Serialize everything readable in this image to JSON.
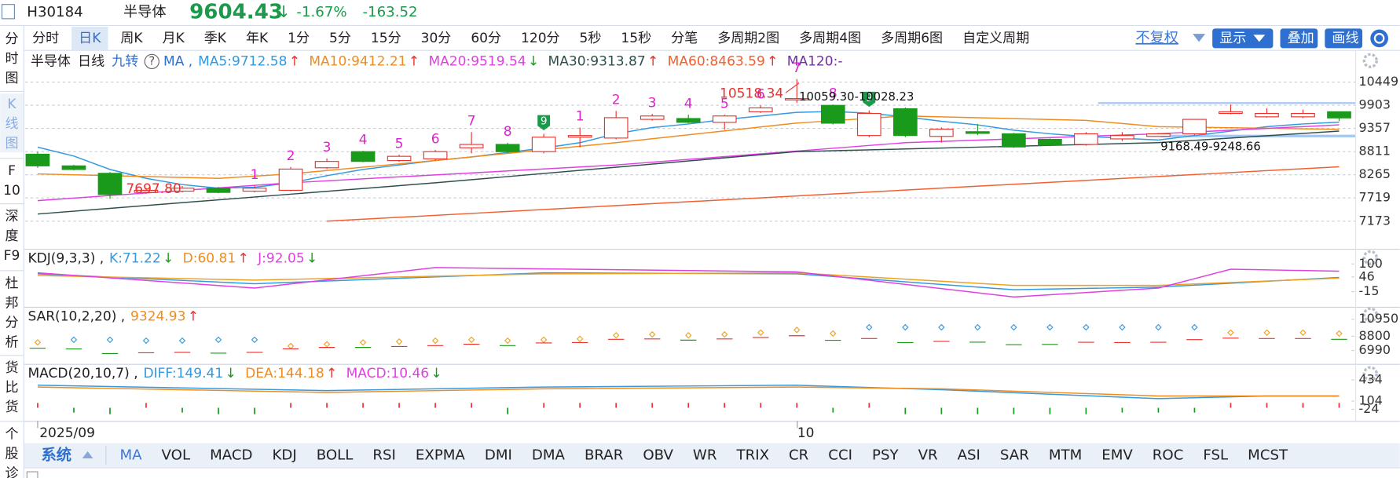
{
  "header": {
    "code": "H30184",
    "name": "半导体",
    "price": "9604.43",
    "arrow": "↓",
    "change_pct": "-1.67%",
    "change": "-163.52"
  },
  "sidebar": [
    "分时图",
    "K线图",
    "F10",
    "深度F9",
    "杜邦分析",
    "货比货",
    "个股诊"
  ],
  "periods": [
    "分时",
    "日K",
    "周K",
    "月K",
    "季K",
    "年K",
    "1分",
    "5分",
    "15分",
    "30分",
    "60分",
    "120分",
    "5秒",
    "15秒",
    "分笔",
    "多周期2图",
    "多周期4图",
    "多周期6图",
    "自定义周期"
  ],
  "period_selected": 1,
  "controls": [
    "不复权",
    "显示",
    "叠加",
    "画线"
  ],
  "main_legend": {
    "lead": [
      "半导体",
      "日线",
      "九转"
    ],
    "help": "?",
    "indicator": "MA ,",
    "items": [
      {
        "text": "MA5:9712.58",
        "color": "#3399e0",
        "arrow": "↑",
        "arrow_color": "#e8322e"
      },
      {
        "text": "MA10:9412.21",
        "color": "#f08c1e",
        "arrow": "↑",
        "arrow_color": "#e8322e"
      },
      {
        "text": "MA20:9519.54",
        "color": "#e040e0",
        "arrow": "↓",
        "arrow_color": "#1a9a1a"
      },
      {
        "text": "MA30:9313.87",
        "color": "#2f4f4f",
        "arrow": "↑",
        "arrow_color": "#e8322e"
      },
      {
        "text": "MA60:8463.59",
        "color": "#f06030",
        "arrow": "↑",
        "arrow_color": "#e8322e"
      },
      {
        "text": "MA120:-",
        "color": "#7030a0"
      }
    ]
  },
  "kline": {
    "ylim": [
      6606,
      10701
    ],
    "yticks": [
      10449,
      9903,
      9357,
      8811,
      8265,
      7719,
      7173
    ],
    "up_color": "#e8322e",
    "down_color": "#1a9a1a",
    "candles": [
      [
        8750,
        8810,
        8430,
        8475
      ],
      [
        8475,
        8500,
        8370,
        8390
      ],
      [
        8300,
        8330,
        7698,
        7800
      ],
      [
        7850,
        7950,
        7820,
        7900
      ],
      [
        7880,
        8000,
        7850,
        7950
      ],
      [
        7950,
        7980,
        7830,
        7850
      ],
      [
        7880,
        8010,
        7850,
        7950
      ],
      [
        7900,
        8450,
        7880,
        8400
      ],
      [
        8430,
        8650,
        8400,
        8580
      ],
      [
        8810,
        8830,
        8560,
        8580
      ],
      [
        8600,
        8740,
        8570,
        8700
      ],
      [
        8640,
        8850,
        8600,
        8810
      ],
      [
        8900,
        9270,
        8770,
        8980
      ],
      [
        8980,
        9020,
        8780,
        8810
      ],
      [
        8810,
        9230,
        8770,
        9150
      ],
      [
        9150,
        9380,
        8910,
        9190
      ],
      [
        9130,
        9770,
        9100,
        9610
      ],
      [
        9570,
        9700,
        9540,
        9650
      ],
      [
        9590,
        9680,
        9480,
        9500
      ],
      [
        9500,
        9680,
        9330,
        9650
      ],
      [
        9750,
        9900,
        9720,
        9840
      ],
      [
        10028,
        10518,
        9960,
        10059
      ],
      [
        9900,
        9920,
        9450,
        9480
      ],
      [
        9190,
        9780,
        9150,
        9710
      ],
      [
        9820,
        9850,
        9150,
        9190
      ],
      [
        9170,
        9380,
        9020,
        9340
      ],
      [
        9280,
        9460,
        9200,
        9240
      ],
      [
        9230,
        9250,
        8900,
        8920
      ],
      [
        9100,
        9120,
        8940,
        8960
      ],
      [
        8980,
        9270,
        8950,
        9230
      ],
      [
        9110,
        9270,
        9060,
        9190
      ],
      [
        9170,
        9250,
        9168,
        9230
      ],
      [
        9230,
        9580,
        9200,
        9570
      ],
      [
        9710,
        9920,
        9690,
        9750
      ],
      [
        9630,
        9830,
        9610,
        9710
      ],
      [
        9630,
        9800,
        9600,
        9710
      ],
      [
        9750,
        9760,
        9530,
        9604
      ]
    ],
    "nine_turn": [
      null,
      null,
      null,
      null,
      null,
      null,
      "1",
      "2",
      "3",
      "4",
      "5",
      "6",
      "7",
      "8",
      "9",
      "1",
      "2",
      "3",
      "4",
      "5",
      "6",
      "7",
      "8",
      "9",
      null,
      null,
      null,
      null,
      null,
      null,
      null,
      null,
      null,
      null,
      null,
      null,
      null
    ],
    "ma_lines": [
      {
        "color": "#3399e0",
        "x": [
          0,
          1,
          2,
          3,
          4,
          5,
          6,
          7,
          8,
          9,
          10,
          11,
          12,
          13,
          14,
          15,
          16,
          17,
          18,
          19,
          20,
          21,
          22,
          23,
          24,
          25,
          26,
          27,
          28,
          29,
          30,
          31,
          32,
          33,
          34,
          35,
          36
        ],
        "values": [
          8916,
          8706,
          8391,
          8181,
          8034,
          7950,
          7971,
          8076,
          8244,
          8391,
          8496,
          8601,
          8685,
          8790,
          8895,
          9021,
          9231,
          9378,
          9462,
          9567,
          9651,
          9735,
          9756,
          9714,
          9630,
          9525,
          9441,
          9315,
          9231,
          9168,
          9126,
          9084,
          9189,
          9294,
          9399,
          9462,
          9504
        ]
      },
      {
        "color": "#f08c1e",
        "x": [
          0,
          5,
          7,
          11,
          16,
          21,
          24,
          29,
          31,
          36
        ],
        "values": [
          8286,
          8181,
          8286,
          8601,
          9021,
          9483,
          9651,
          9546,
          9399,
          9336
        ]
      },
      {
        "color": "#e040e0",
        "x": [
          0,
          7,
          16,
          24,
          31,
          36
        ],
        "values": [
          7656,
          8076,
          8496,
          9021,
          9231,
          9441
        ]
      },
      {
        "color": "#2f4f4f",
        "x": [
          0,
          11,
          21,
          31,
          36
        ],
        "values": [
          7341,
          8076,
          8811,
          9021,
          9294
        ]
      },
      {
        "color": "#f06030",
        "x": [
          8,
          36
        ],
        "values": [
          7173,
          8454
        ]
      }
    ],
    "annotations": {
      "high": "10518.34",
      "low": "7697.80",
      "range1": "10059.30-10028.23",
      "range2": "9168.49-9248.66"
    }
  },
  "kdj": {
    "legend": {
      "indicator": "KDJ(9,3,3) ,",
      "items": [
        {
          "text": "K:71.22",
          "color": "#3399e0",
          "arrow": "↓",
          "arrow_color": "#1a9a1a"
        },
        {
          "text": "D:60.81",
          "color": "#f08c1e",
          "arrow": "↑",
          "arrow_color": "#e8322e"
        },
        {
          "text": "J:92.05",
          "color": "#e040e0",
          "arrow": "↓",
          "arrow_color": "#1a9a1a"
        }
      ]
    },
    "ylim": [
      -74,
      148
    ],
    "yticks": [
      100,
      46,
      -15
    ],
    "lines": [
      {
        "color": "#3399e0",
        "x": [
          0,
          6,
          14,
          21,
          27,
          31,
          36
        ],
        "values": [
          59,
          18,
          63,
          59,
          -7,
          4,
          44
        ]
      },
      {
        "color": "#f0a020",
        "x": [
          0,
          6,
          14,
          21,
          27,
          31,
          36
        ],
        "values": [
          52,
          33,
          59,
          63,
          11,
          11,
          41
        ]
      },
      {
        "color": "#e040e0",
        "x": [
          0,
          6,
          11,
          21,
          27,
          31,
          33,
          36
        ],
        "values": [
          63,
          0,
          85,
          67,
          -37,
          0,
          78,
          70
        ]
      }
    ]
  },
  "sar": {
    "legend": {
      "indicator": "SAR(10,2,20) ,",
      "items": [
        {
          "text": "9324.93",
          "color": "#f08c1e",
          "arrow": "↑",
          "arrow_color": "#e8322e"
        }
      ]
    },
    "ylim": [
      5523,
      12190
    ],
    "yticks": [
      10950,
      8800,
      6990
    ],
    "above_color": "#3399e0",
    "below_color": "#f0a020",
    "above": [
      null,
      8348,
      8348,
      8235,
      8235,
      8348,
      8348,
      null,
      null,
      null,
      null,
      null,
      null,
      null,
      null,
      null,
      null,
      null,
      null,
      null,
      null,
      null,
      null,
      9930,
      9930,
      9930,
      9930,
      9930,
      9930,
      9930,
      9930,
      9930,
      9930,
      null,
      null,
      null,
      null
    ],
    "below": [
      8009,
      null,
      null,
      null,
      null,
      null,
      null,
      7557,
      7783,
      8009,
      8122,
      8235,
      8348,
      8235,
      8348,
      8461,
      8913,
      9026,
      8913,
      9026,
      9252,
      9591,
      9139,
      null,
      null,
      null,
      null,
      null,
      null,
      null,
      null,
      null,
      null,
      9252,
      9252,
      9252,
      9139
    ]
  },
  "macd": {
    "legend": {
      "indicator": "MACD(20,10,7) ,",
      "items": [
        {
          "text": "DIFF:149.41",
          "color": "#3399e0",
          "arrow": "↓",
          "arrow_color": "#1a9a1a"
        },
        {
          "text": "DEA:144.18",
          "color": "#f08c1e",
          "arrow": "↑",
          "arrow_color": "#e8322e"
        },
        {
          "text": "MACD:10.46",
          "color": "#e040e0",
          "arrow": "↓",
          "arrow_color": "#1a9a1a"
        }
      ]
    },
    "ylim": [
      -177,
      642
    ],
    "yticks": [
      434,
      104,
      -24
    ],
    "lines": [
      {
        "color": "#3399e0",
        "x": [
          0,
          8,
          14,
          21,
          25,
          31,
          34,
          36
        ],
        "values": [
          351,
          267,
          323,
          351,
          281,
          142,
          184,
          184
        ]
      },
      {
        "color": "#f08c1e",
        "x": [
          0,
          8,
          14,
          21,
          25,
          31,
          36
        ],
        "values": [
          323,
          239,
          295,
          323,
          295,
          184,
          184
        ]
      }
    ],
    "bars": [
      30,
      -30,
      -40,
      30,
      -30,
      -40,
      -40,
      30,
      30,
      30,
      30,
      30,
      30,
      -40,
      30,
      30,
      30,
      30,
      30,
      30,
      30,
      30,
      -30,
      30,
      -40,
      -40,
      -40,
      -40,
      -40,
      -40,
      -30,
      -30,
      -30,
      30,
      30,
      30,
      30
    ]
  },
  "xaxis": [
    "2025/09",
    "10"
  ],
  "bottom_tabs": {
    "group": "系统",
    "items": [
      "MA",
      "VOL",
      "MACD",
      "KDJ",
      "BOLL",
      "RSI",
      "EXPMA",
      "DMI",
      "DMA",
      "BRAR",
      "OBV",
      "WR",
      "TRIX",
      "CR",
      "CCI",
      "PSY",
      "VR",
      "ASI",
      "SAR",
      "MTM",
      "EMV",
      "ROC",
      "FSL",
      "MCST"
    ],
    "selected": 0
  }
}
